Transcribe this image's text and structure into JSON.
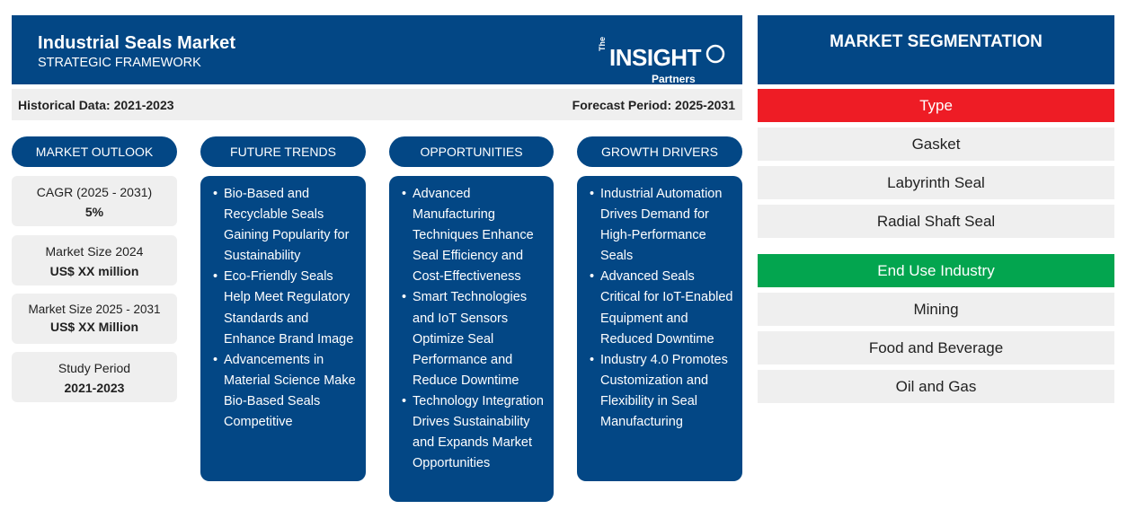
{
  "header": {
    "title": "Industrial Seals Market",
    "subtitle": "STRATEGIC FRAMEWORK",
    "logo": {
      "the": "The",
      "brand": "INSIGHT",
      "tagline": "Partners"
    }
  },
  "periods": {
    "historical": "Historical Data: 2021-2023",
    "forecast": "Forecast Period: 2025-2031"
  },
  "columns": {
    "outlook_title": "MARKET OUTLOOK",
    "trends_title": "FUTURE TRENDS",
    "opportunities_title": "OPPORTUNITIES",
    "drivers_title": "GROWTH DRIVERS"
  },
  "outlook": [
    {
      "label": "CAGR (2025 - 2031)",
      "value": "5%"
    },
    {
      "label": "Market Size 2024",
      "value": "US$ XX million"
    },
    {
      "label": "Market Size 2025 - 2031",
      "value": "US$ XX Million"
    },
    {
      "label": "Study Period",
      "value": "2021-2023"
    }
  ],
  "trends": [
    "Bio-Based and Recyclable Seals Gaining Popularity for Sustainability",
    "Eco-Friendly Seals Help Meet Regulatory Standards and Enhance Brand Image",
    "Advancements in Material Science Make Bio-Based Seals Competitive"
  ],
  "opportunities": [
    "Advanced Manufacturing Techniques Enhance Seal Efficiency and Cost-Effectiveness",
    "Smart Technologies and IoT Sensors Optimize Seal Performance and Reduce Downtime",
    "Technology Integration Drives Sustainability and Expands Market Opportunities"
  ],
  "drivers": [
    "Industrial Automation Drives Demand for High-Performance Seals",
    "Advanced Seals Critical for IoT-Enabled Equipment and Reduced Downtime",
    "Industry 4.0 Promotes Customization and Flexibility in Seal Manufacturing"
  ],
  "segmentation": {
    "title": "MARKET SEGMENTATION",
    "type_label": "Type",
    "type_color": "#ee1c25",
    "type_items": [
      "Gasket",
      "Labyrinth Seal",
      "Radial Shaft Seal"
    ],
    "industry_label": "End Use Industry",
    "industry_color": "#03a54f",
    "industry_items": [
      "Mining",
      "Food and Beverage",
      "Oil and Gas"
    ]
  },
  "colors": {
    "primary_blue": "#034785",
    "panel_gray": "#efefef"
  }
}
